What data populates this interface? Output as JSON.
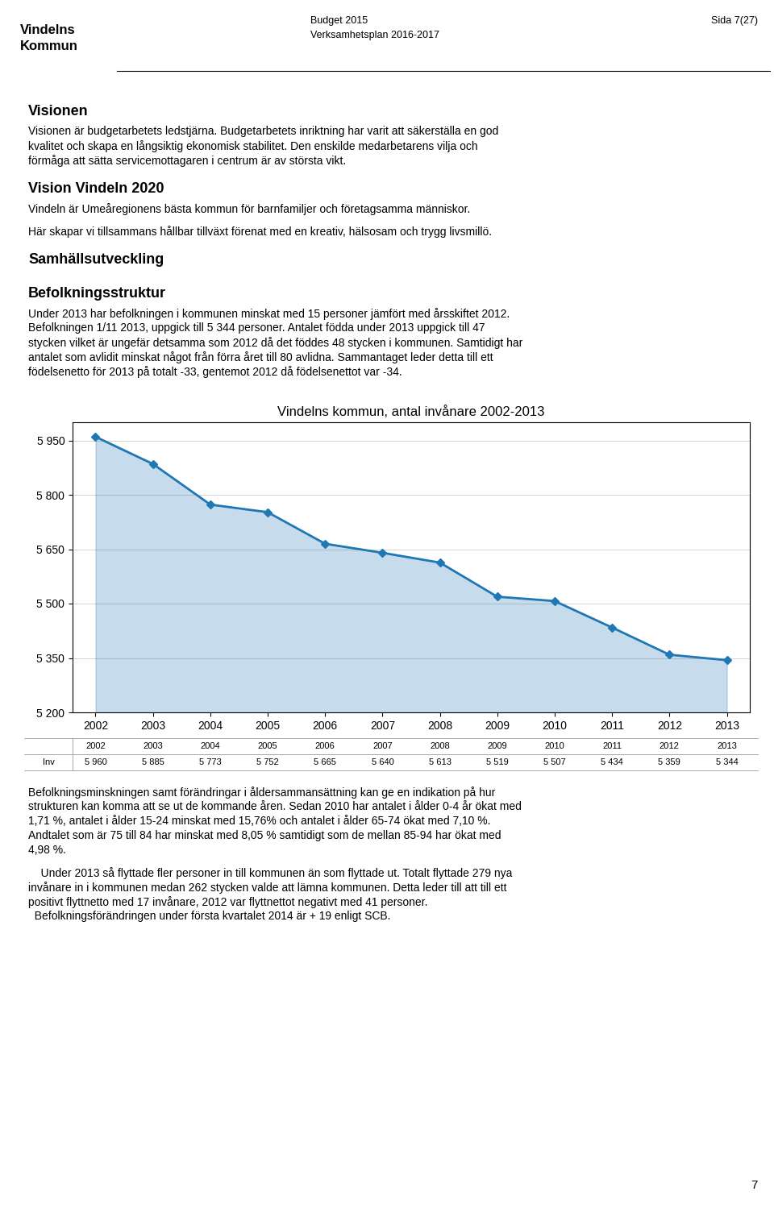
{
  "header": [
    "Budget 2015",
    "Verksamhetsplan 2016-2017",
    "Sida 7(27)"
  ],
  "logo": [
    "Vindelns",
    "Kommun"
  ],
  "page_number": "7",
  "text_before": [
    {
      "heading": "Visionen",
      "paragraphs": [
        [
          "Visionen är budgetarbetets ledstjärna. Budgetarbetets inriktning har varit att säkerställa en god",
          "kvalitet och skapa en långsiktig ekonomisk stabilitet. Den enskilde medarbetarens vilja och",
          "förmåga att sätta servicemottagaren i centrum är av största vikt."
        ]
      ]
    },
    {
      "heading": "Vision Vindeln 2020",
      "paragraphs": [
        [
          "Vindeln är Umeåregionens bästa kommun för barnfamiljer och företagsamma människor."
        ],
        [
          "Här skapar vi tillsammans hållbar tillväxt förenat med en kreativ, hälsosam och trygg livsmillö."
        ]
      ]
    },
    {
      "heading": "Samhällsutveckling",
      "paragraphs": []
    },
    {
      "heading": "Befolkningsstruktur",
      "paragraphs": [
        [
          "Under 2013 har befolkningen i kommunen minskat med 15 personer jämfört med årsskiftet 2012.",
          "Befolkningen 1/11 2013, uppgick till 5 344 personer. Antalet födda under 2013 uppgick till 47",
          "stycken vilket är ungefär detsamma som 2012 då det föddes 48 stycken i kommunen. Samtidigt har",
          "antalet som avlidit minskat något från förra året till 80 avlidna. Sammantaget leder detta till ett",
          "födelsenetto för 2013 på totalt -33, gentemot 2012 då födelsenettot var -34."
        ]
      ]
    }
  ],
  "text_after": [
    [
      "Befolkningsminskningen samt förändringar i åldersammansättning kan ge en indikation på hur",
      "strukturen kan komma att se ut de kommande åren. Sedan 2010 har antalet i ålder 0-4 år ökat med",
      "1,71 %, antalet i ålder 15-24 minskat med 15,76% och antalet i ålder 65-74 ökat med 7,10 %.",
      "Andtalet som är 75 till 84 har minskat med 8,05 % samtidigt som de mellan 85-94 har ökat med",
      "4,98 %."
    ],
    [
      "    Under 2013 så flyttade fler personer in till kommunen än som flyttade ut. Totalt flyttade 279 nya",
      "invånare in i kommunen medan 262 stycken valde att lämna kommunen. Detta leder till att till ett",
      "positivt flyttnetto med 17 invånare, 2012 var flyttnettot negativt med 41 personer.",
      "  Befolkningsförändringen under första kvartalet 2014 är + 19 enligt SCB."
    ]
  ],
  "chart_data": {
    "type": "area",
    "title": "Vindelns kommun, antal invånare 2002-2013",
    "x": [
      2002,
      2003,
      2004,
      2005,
      2006,
      2007,
      2008,
      2009,
      2010,
      2011,
      2012,
      2013
    ],
    "values": [
      5960,
      5885,
      5773,
      5752,
      5665,
      5640,
      5613,
      5519,
      5507,
      5434,
      5359,
      5344
    ],
    "value_labels": [
      "5 960",
      "5 885",
      "5 773",
      "5 752",
      "5 665",
      "5 640",
      "5 613",
      "5 519",
      "5 507",
      "5 434",
      "5 359",
      "5 344"
    ],
    "data_labels": true,
    "annotations": [
      "Inv"
    ],
    "marker": "diamond",
    "xlim": [
      2001.6,
      2013.4
    ],
    "xticks": [
      2002,
      2003,
      2004,
      2005,
      2006,
      2007,
      2008,
      2009,
      2010,
      2011,
      2012,
      2013
    ],
    "ylim": [
      5200,
      6000
    ],
    "yticks": [
      {
        "value": 5200,
        "label": "5 200"
      },
      {
        "value": 5350,
        "label": "5 350"
      },
      {
        "value": 5500,
        "label": "5 500"
      },
      {
        "value": 5650,
        "label": "5 650"
      },
      {
        "value": 5800,
        "label": "5 800"
      },
      {
        "value": 5950,
        "label": "5 950"
      }
    ],
    "grid": "y"
  }
}
